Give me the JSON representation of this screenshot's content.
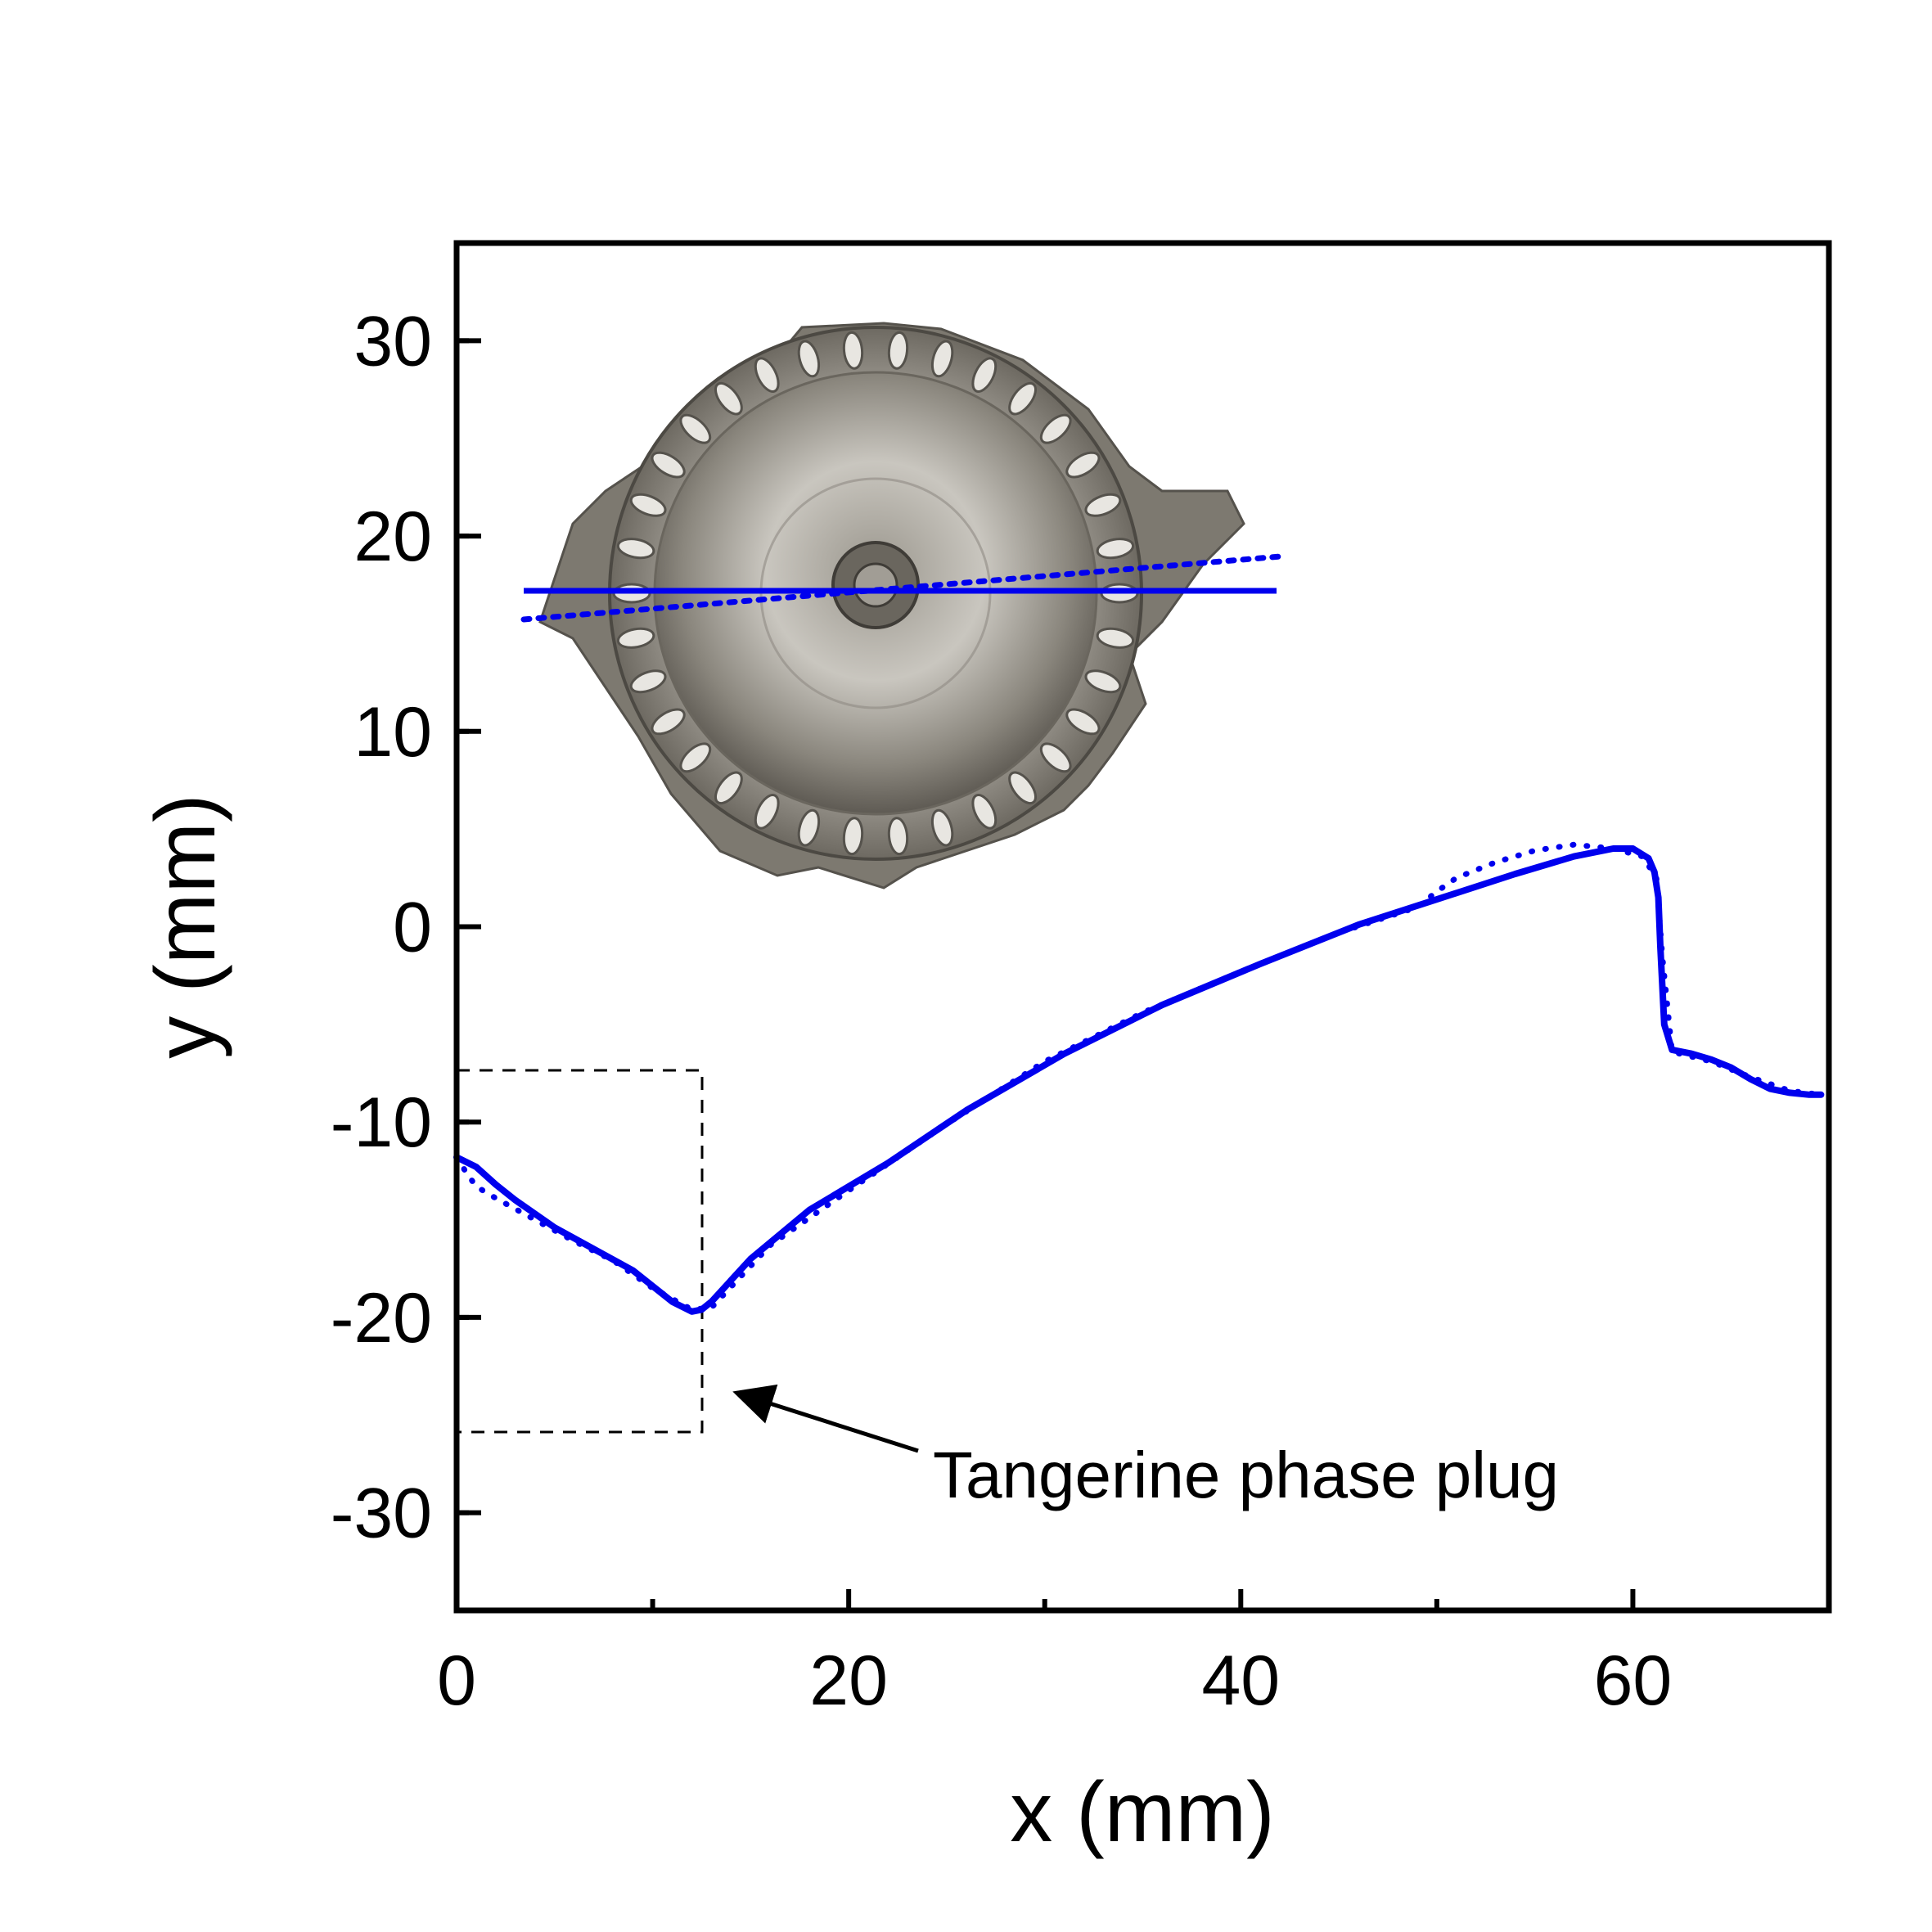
{
  "chart_data": {
    "type": "line",
    "title": "",
    "xlabel": "x (mm)",
    "ylabel": "y (mm)",
    "xlim": [
      0,
      70
    ],
    "ylim": [
      -35,
      35
    ],
    "xticks": [
      0,
      20,
      40,
      60
    ],
    "yticks": [
      30,
      20,
      10,
      0,
      -10,
      -20,
      -30
    ],
    "grid": false,
    "legend": "none",
    "series": [
      {
        "style": "solid",
        "color": "#0000ee",
        "x": [
          0,
          1,
          2,
          3,
          5,
          7,
          9,
          11,
          12,
          12.5,
          13,
          15,
          18,
          22,
          26,
          31,
          36,
          41,
          46,
          50,
          54,
          57,
          59,
          60,
          60.8,
          61.1,
          61.3,
          61.4,
          61.6,
          62,
          63,
          64,
          65,
          66,
          67,
          68,
          69,
          69.6
        ],
        "y": [
          -11.8,
          -12.3,
          -13.2,
          -14.0,
          -15.4,
          -16.5,
          -17.6,
          -19.2,
          -19.7,
          -19.6,
          -19.2,
          -17.0,
          -14.5,
          -12.1,
          -9.4,
          -6.5,
          -4.0,
          -1.9,
          0.1,
          1.4,
          2.7,
          3.6,
          4.0,
          4.0,
          3.5,
          2.8,
          1.5,
          -1.0,
          -5.0,
          -6.3,
          -6.5,
          -6.8,
          -7.2,
          -7.8,
          -8.3,
          -8.5,
          -8.6,
          -8.6
        ]
      },
      {
        "style": "dotted",
        "color": "#0000ee",
        "x": [
          0,
          0.5,
          1,
          2,
          4,
          6,
          8,
          10,
          12,
          13,
          16,
          20,
          25,
          30,
          35,
          40,
          45,
          49,
          50,
          51,
          53,
          55,
          57,
          59,
          60.5,
          61.2,
          61.5,
          62,
          64,
          66,
          68,
          69.6
        ],
        "y": [
          -11.8,
          -12.6,
          -13.3,
          -13.9,
          -15.0,
          -16.1,
          -17.1,
          -18.5,
          -19.6,
          -19.5,
          -16.3,
          -13.5,
          -10.1,
          -6.9,
          -4.4,
          -2.3,
          -0.3,
          1.0,
          1.8,
          2.5,
          3.3,
          3.9,
          4.2,
          4.0,
          3.6,
          2.5,
          -1.5,
          -6.4,
          -6.9,
          -7.7,
          -8.4,
          -8.6
        ]
      }
    ],
    "annotations": [
      {
        "text": "Tangerine phase plug"
      }
    ],
    "inset": {
      "description_name": "phase-plug-render"
    }
  }
}
